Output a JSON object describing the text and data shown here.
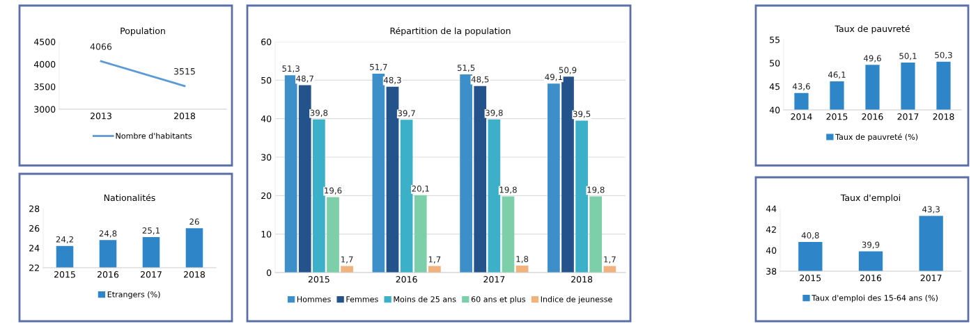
{
  "chart_data": [
    {
      "type": "line",
      "title": "Population",
      "categories": [
        "2013",
        "2018"
      ],
      "ylim": [
        3000,
        4500
      ],
      "yticks": [
        3000,
        3500,
        4000,
        4500
      ],
      "grid": false,
      "legend": "bottom",
      "marker": "none",
      "series": [
        {
          "name": "Nombre d'habitants",
          "color": "#5b9bd5",
          "values": [
            4066,
            3515
          ],
          "value_labels": [
            "4066",
            "3515"
          ]
        }
      ]
    },
    {
      "type": "bar",
      "title": "Nationalités",
      "categories": [
        "2015",
        "2016",
        "2017",
        "2018"
      ],
      "ylim": [
        22,
        28
      ],
      "yticks": [
        22,
        24,
        26,
        28
      ],
      "grid": false,
      "legend": "bottom",
      "series": [
        {
          "name": "Etrangers (%)",
          "color": "#2e86c8",
          "values": [
            24.2,
            24.8,
            25.1,
            26
          ],
          "value_labels": [
            "24,2",
            "24,8",
            "25,1",
            "26"
          ]
        }
      ]
    },
    {
      "type": "bar",
      "title": "Répartition de la population",
      "categories": [
        "2015",
        "2016",
        "2017",
        "2018"
      ],
      "ylim": [
        0,
        60
      ],
      "yticks": [
        0,
        10,
        20,
        30,
        40,
        50,
        60
      ],
      "grid": "y",
      "legend": "bottom",
      "series": [
        {
          "name": "Hommes",
          "color": "#3d8fca",
          "values": [
            51.3,
            51.7,
            51.5,
            49.1
          ],
          "value_labels": [
            "51,3",
            "51,7",
            "51,5",
            "49,1"
          ]
        },
        {
          "name": "Femmes",
          "color": "#24528a",
          "values": [
            48.7,
            48.3,
            48.5,
            50.9
          ],
          "value_labels": [
            "48,7",
            "48,3",
            "48,5",
            "50,9"
          ]
        },
        {
          "name": "Moins de 25 ans",
          "color": "#3cb0c9",
          "values": [
            39.8,
            39.7,
            39.8,
            39.5
          ],
          "value_labels": [
            "39,8",
            "39,7",
            "39,8",
            "39,5"
          ]
        },
        {
          "name": "60 ans et plus",
          "color": "#7dcfa9",
          "values": [
            19.6,
            20.1,
            19.8,
            19.8
          ],
          "value_labels": [
            "19,6",
            "20,1",
            "19,8",
            "19,8"
          ]
        },
        {
          "name": "Indice de jeunesse",
          "color": "#f2b27e",
          "values": [
            1.7,
            1.7,
            1.8,
            1.7
          ],
          "value_labels": [
            "1,7",
            "1,7",
            "1,8",
            "1,7"
          ]
        }
      ]
    },
    {
      "type": "bar",
      "title": "Taux de pauvreté",
      "categories": [
        "2014",
        "2015",
        "2016",
        "2017",
        "2018"
      ],
      "ylim": [
        40,
        55
      ],
      "yticks": [
        40,
        45,
        50,
        55
      ],
      "grid": false,
      "legend": "bottom",
      "series": [
        {
          "name": "Taux de pauvreté (%)",
          "color": "#2e86c8",
          "values": [
            43.6,
            46.1,
            49.6,
            50.1,
            50.3
          ],
          "value_labels": [
            "43,6",
            "46,1",
            "49,6",
            "50,1",
            "50,3"
          ]
        }
      ]
    },
    {
      "type": "bar",
      "title": "Taux d'emploi",
      "categories": [
        "2015",
        "2016",
        "2017"
      ],
      "ylim": [
        38,
        44
      ],
      "yticks": [
        38,
        40,
        42,
        44
      ],
      "grid": false,
      "legend": "bottom",
      "series": [
        {
          "name": "Taux d'emploi des 15-64 ans (%)",
          "color": "#2e86c8",
          "values": [
            40.8,
            39.9,
            43.3
          ],
          "value_labels": [
            "40,8",
            "39,9",
            "43,3"
          ]
        }
      ]
    }
  ]
}
